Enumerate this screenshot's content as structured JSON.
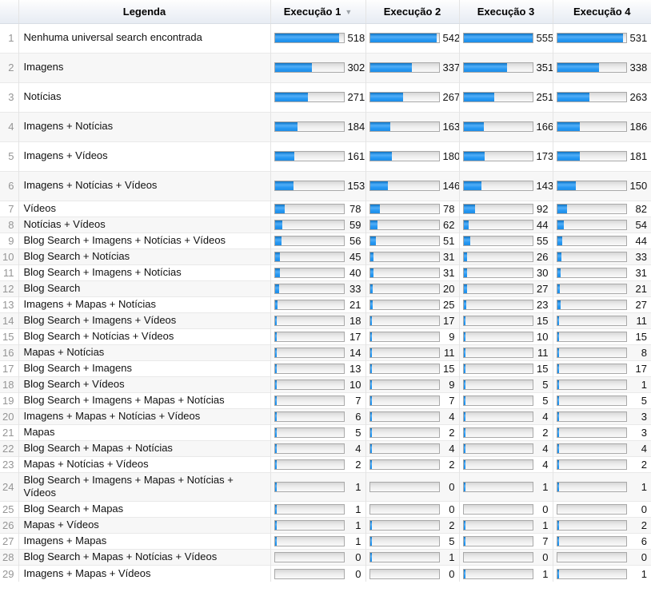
{
  "header": {
    "legend_label": "Legenda",
    "columns": [
      "Execução 1",
      "Execução 2",
      "Execução 3",
      "Execução 4"
    ],
    "sorted_column": "Execução 1",
    "sort_icon": "▼"
  },
  "table": {
    "rows": [
      {
        "num": 1,
        "label": "Nenhuma universal search encontrada",
        "values": [
          518,
          542,
          555,
          531
        ],
        "tall": true
      },
      {
        "num": 2,
        "label": "Imagens",
        "values": [
          302,
          337,
          351,
          338
        ],
        "tall": true
      },
      {
        "num": 3,
        "label": "Notícias",
        "values": [
          271,
          267,
          251,
          263
        ],
        "tall": true
      },
      {
        "num": 4,
        "label": "Imagens + Notícias",
        "values": [
          184,
          163,
          166,
          186
        ],
        "tall": true
      },
      {
        "num": 5,
        "label": "Imagens + Vídeos",
        "values": [
          161,
          180,
          173,
          181
        ],
        "tall": true
      },
      {
        "num": 6,
        "label": "Imagens + Notícias + Vídeos",
        "values": [
          153,
          146,
          143,
          150
        ],
        "tall": true
      },
      {
        "num": 7,
        "label": "Vídeos",
        "values": [
          78,
          78,
          92,
          82
        ],
        "tall": false
      },
      {
        "num": 8,
        "label": "Notícias + Vídeos",
        "values": [
          59,
          62,
          44,
          54
        ],
        "tall": false
      },
      {
        "num": 9,
        "label": "Blog Search + Imagens + Notícias + Vídeos",
        "values": [
          56,
          51,
          55,
          44
        ],
        "tall": false
      },
      {
        "num": 10,
        "label": "Blog Search + Notícias",
        "values": [
          45,
          31,
          26,
          33
        ],
        "tall": false
      },
      {
        "num": 11,
        "label": "Blog Search + Imagens + Notícias",
        "values": [
          40,
          31,
          30,
          31
        ],
        "tall": false
      },
      {
        "num": 12,
        "label": "Blog Search",
        "values": [
          33,
          20,
          27,
          21
        ],
        "tall": false
      },
      {
        "num": 13,
        "label": "Imagens + Mapas + Notícias",
        "values": [
          21,
          25,
          23,
          27
        ],
        "tall": false
      },
      {
        "num": 14,
        "label": "Blog Search + Imagens + Vídeos",
        "values": [
          18,
          17,
          15,
          11
        ],
        "tall": false
      },
      {
        "num": 15,
        "label": "Blog Search + Notícias + Vídeos",
        "values": [
          17,
          9,
          10,
          15
        ],
        "tall": false
      },
      {
        "num": 16,
        "label": "Mapas + Notícias",
        "values": [
          14,
          11,
          11,
          8
        ],
        "tall": false
      },
      {
        "num": 17,
        "label": "Blog Search + Imagens",
        "values": [
          13,
          15,
          15,
          17
        ],
        "tall": false
      },
      {
        "num": 18,
        "label": "Blog Search + Vídeos",
        "values": [
          10,
          9,
          5,
          1
        ],
        "tall": false
      },
      {
        "num": 19,
        "label": "Blog Search + Imagens + Mapas + Notícias",
        "values": [
          7,
          7,
          5,
          5
        ],
        "tall": false
      },
      {
        "num": 20,
        "label": "Imagens + Mapas + Notícias + Vídeos",
        "values": [
          6,
          4,
          4,
          3
        ],
        "tall": false
      },
      {
        "num": 21,
        "label": "Mapas",
        "values": [
          5,
          2,
          2,
          3
        ],
        "tall": false
      },
      {
        "num": 22,
        "label": "Blog Search + Mapas + Notícias",
        "values": [
          4,
          4,
          4,
          4
        ],
        "tall": false
      },
      {
        "num": 23,
        "label": "Mapas + Notícias + Vídeos",
        "values": [
          2,
          2,
          4,
          2
        ],
        "tall": false
      },
      {
        "num": 24,
        "label": "Blog Search + Imagens + Mapas + Notícias + Vídeos",
        "values": [
          1,
          0,
          1,
          1
        ],
        "tall": false
      },
      {
        "num": 25,
        "label": "Blog Search + Mapas",
        "values": [
          1,
          0,
          0,
          0
        ],
        "tall": false
      },
      {
        "num": 26,
        "label": "Mapas + Vídeos",
        "values": [
          1,
          2,
          1,
          2
        ],
        "tall": false
      },
      {
        "num": 27,
        "label": "Imagens + Mapas",
        "values": [
          1,
          5,
          7,
          6
        ],
        "tall": false
      },
      {
        "num": 28,
        "label": "Blog Search + Mapas + Notícias + Vídeos",
        "values": [
          0,
          1,
          0,
          0
        ],
        "tall": false
      },
      {
        "num": 29,
        "label": "Imagens + Mapas + Vídeos",
        "values": [
          0,
          0,
          1,
          1
        ],
        "tall": false
      }
    ]
  },
  "colors": {
    "bar_fill": "#2196f3",
    "bar_track_border": "#a9a9a9",
    "header_gradient_bottom": "#e7ecf3",
    "row_alt_background": "#f7f7f7"
  },
  "chart_data": {
    "type": "bar",
    "orientation": "horizontal",
    "title": "",
    "xlabel": "",
    "ylabel": "Legenda",
    "value_range": [
      0,
      555
    ],
    "grid": false,
    "legend_position": "table-header",
    "categories": [
      "Nenhuma universal search encontrada",
      "Imagens",
      "Notícias",
      "Imagens + Notícias",
      "Imagens + Vídeos",
      "Imagens + Notícias + Vídeos",
      "Vídeos",
      "Notícias + Vídeos",
      "Blog Search + Imagens + Notícias + Vídeos",
      "Blog Search + Notícias",
      "Blog Search + Imagens + Notícias",
      "Blog Search",
      "Imagens + Mapas + Notícias",
      "Blog Search + Imagens + Vídeos",
      "Blog Search + Notícias + Vídeos",
      "Mapas + Notícias",
      "Blog Search + Imagens",
      "Blog Search + Vídeos",
      "Blog Search + Imagens + Mapas + Notícias",
      "Imagens + Mapas + Notícias + Vídeos",
      "Mapas",
      "Blog Search + Mapas + Notícias",
      "Mapas + Notícias + Vídeos",
      "Blog Search + Imagens + Mapas + Notícias + Vídeos",
      "Blog Search + Mapas",
      "Mapas + Vídeos",
      "Imagens + Mapas",
      "Blog Search + Mapas + Notícias + Vídeos",
      "Imagens + Mapas + Vídeos"
    ],
    "series": [
      {
        "name": "Execução 1",
        "values": [
          518,
          302,
          271,
          184,
          161,
          153,
          78,
          59,
          56,
          45,
          40,
          33,
          21,
          18,
          17,
          14,
          13,
          10,
          7,
          6,
          5,
          4,
          2,
          1,
          1,
          1,
          1,
          0,
          0
        ]
      },
      {
        "name": "Execução 2",
        "values": [
          542,
          337,
          267,
          163,
          180,
          146,
          78,
          62,
          51,
          31,
          31,
          20,
          25,
          17,
          9,
          11,
          15,
          9,
          7,
          4,
          2,
          4,
          2,
          0,
          0,
          2,
          5,
          1,
          0
        ]
      },
      {
        "name": "Execução 3",
        "values": [
          555,
          351,
          251,
          166,
          173,
          143,
          92,
          44,
          55,
          26,
          30,
          27,
          23,
          15,
          10,
          11,
          15,
          5,
          5,
          4,
          2,
          4,
          4,
          1,
          0,
          1,
          7,
          0,
          1
        ]
      },
      {
        "name": "Execução 4",
        "values": [
          531,
          338,
          263,
          186,
          181,
          150,
          82,
          54,
          44,
          33,
          31,
          21,
          27,
          11,
          15,
          8,
          17,
          1,
          5,
          3,
          3,
          4,
          2,
          1,
          0,
          2,
          6,
          0,
          1
        ]
      }
    ]
  }
}
